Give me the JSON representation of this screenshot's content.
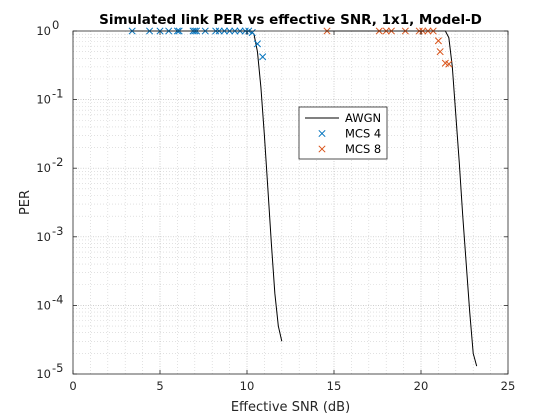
{
  "chart_data": {
    "type": "line",
    "title": "Simulated link PER vs effective SNR, 1x1, Model-D",
    "xlabel": "Effective SNR (dB)",
    "ylabel": "PER",
    "xlim": [
      0,
      25
    ],
    "ylim": [
      1e-05,
      1
    ],
    "yscale": "log",
    "grid": "on, with minor grid",
    "legend_position": "center",
    "x_ticks": [
      "0",
      "5",
      "10",
      "15",
      "20",
      "25"
    ],
    "y_ticks": [
      {
        "base": "10",
        "exp": "0",
        "value": 1
      },
      {
        "base": "10",
        "exp": "-1",
        "value": 0.1
      },
      {
        "base": "10",
        "exp": "-2",
        "value": 0.01
      },
      {
        "base": "10",
        "exp": "-3",
        "value": 0.001
      },
      {
        "base": "10",
        "exp": "-4",
        "value": 0.0001
      },
      {
        "base": "10",
        "exp": "-5",
        "value": 1e-05
      }
    ],
    "series": [
      {
        "name": "AWGN",
        "type": "line",
        "color": "#000000",
        "segments": [
          {
            "x": [
              3.3,
              10.2,
              10.4,
              10.6,
              10.8,
              11.0,
              11.2,
              11.4,
              11.6,
              11.8,
              12.0
            ],
            "y": [
              1.0,
              1.0,
              0.9,
              0.5,
              0.15,
              0.03,
              0.005,
              0.0008,
              0.00015,
              5e-05,
              3e-05
            ]
          },
          {
            "x": [
              14.5,
              21.4,
              21.6,
              21.8,
              22.0,
              22.2,
              22.4,
              22.6,
              22.8,
              23.0,
              23.2
            ],
            "y": [
              1.0,
              1.0,
              0.8,
              0.3,
              0.06,
              0.012,
              0.002,
              0.0004,
              8e-05,
              2e-05,
              1.3e-05
            ]
          }
        ]
      },
      {
        "name": "MCS 4",
        "type": "scatter",
        "marker": "x",
        "color": "#0072BD",
        "x": [
          3.4,
          4.4,
          5.0,
          5.5,
          6.0,
          6.1,
          6.9,
          7.0,
          7.1,
          7.6,
          8.2,
          8.4,
          8.7,
          9.0,
          9.3,
          9.6,
          9.9,
          10.1,
          10.3,
          10.6,
          10.9
        ],
        "y": [
          1.0,
          1.0,
          1.0,
          1.0,
          1.0,
          1.0,
          1.0,
          1.0,
          1.0,
          1.0,
          1.0,
          1.0,
          1.0,
          1.0,
          1.0,
          1.0,
          1.0,
          1.0,
          0.95,
          0.65,
          0.42
        ]
      },
      {
        "name": "MCS 8",
        "type": "scatter",
        "marker": "x",
        "color": "#D95319",
        "x": [
          14.6,
          17.6,
          18.0,
          18.3,
          19.1,
          19.9,
          20.1,
          20.4,
          20.7,
          21.0,
          21.1,
          21.4,
          21.6
        ],
        "y": [
          1.0,
          1.0,
          1.0,
          1.0,
          1.0,
          1.0,
          1.0,
          1.0,
          1.0,
          0.72,
          0.5,
          0.34,
          0.33
        ]
      }
    ]
  }
}
